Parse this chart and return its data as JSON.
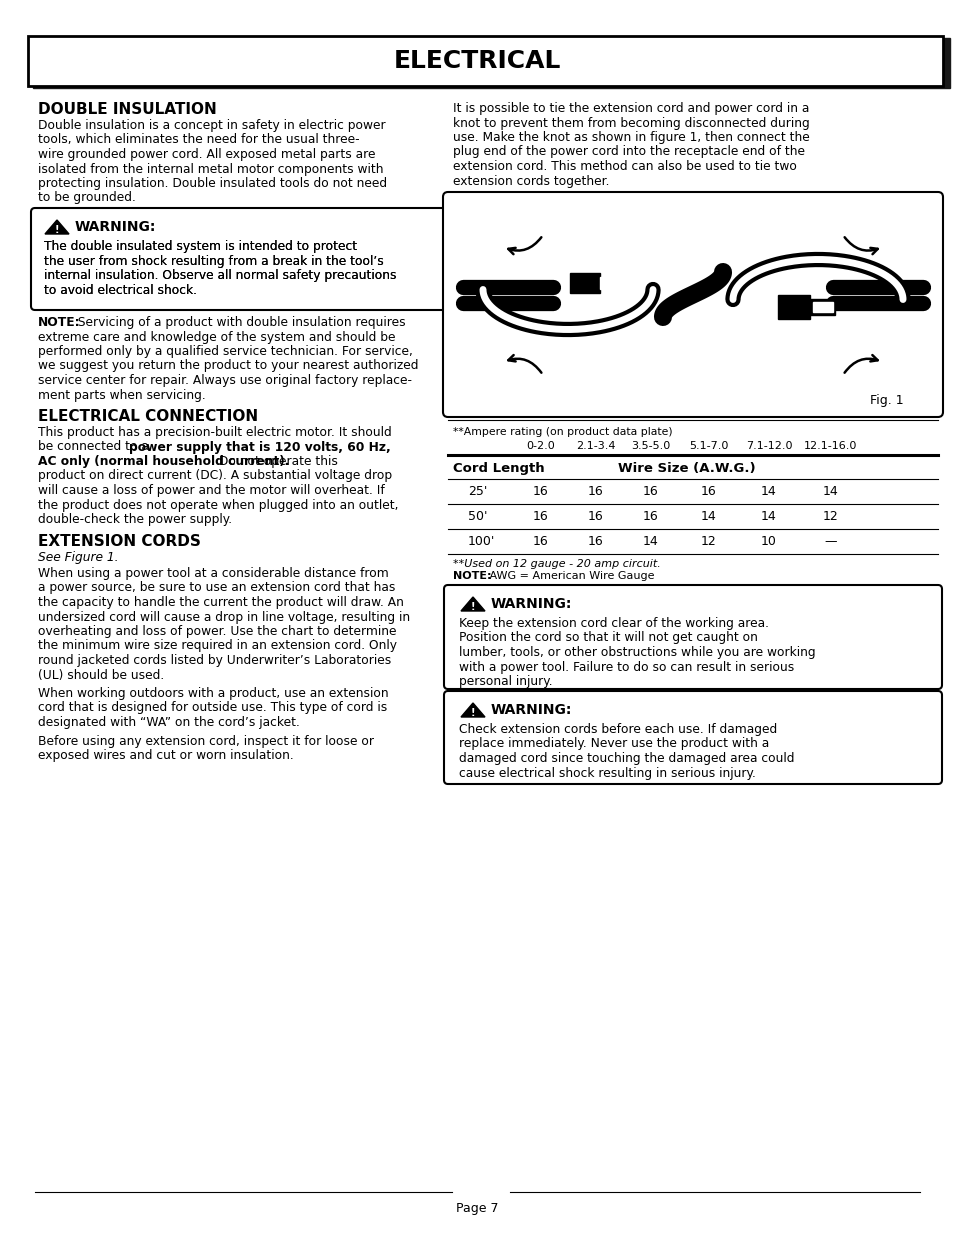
{
  "title": "ELECTRICAL",
  "bg_color": "#ffffff",
  "page_number": "Page 7",
  "double_insulation_heading": "DOUBLE INSULATION",
  "double_insulation_body": [
    "Double insulation is a concept in safety in electric power",
    "tools, which eliminates the need for the usual three-",
    "wire grounded power cord. All exposed metal parts are",
    "isolated from the internal metal motor components with",
    "protecting insulation. Double insulated tools do not need",
    "to be grounded."
  ],
  "warning1_body": [
    "The double insulated system is intended to protect",
    "the user from shock resulting from a break in the tool’s",
    "internal insulation. Observe all normal safety precautions",
    "to avoid electrical shock."
  ],
  "note1_lines": [
    [
      "bold",
      "NOTE:"
    ],
    [
      "normal",
      " Servicing of a product with double insulation requires"
    ],
    [
      "normal",
      "extreme care and knowledge of the system and should be"
    ],
    [
      "normal",
      "performed only by a qualified service technician. For service,"
    ],
    [
      "normal",
      "we suggest you return the product to your nearest authorized"
    ],
    [
      "normal",
      "service center for repair. Always use original factory replace-"
    ],
    [
      "normal",
      "ment parts when servicing."
    ]
  ],
  "elec_conn_heading": "ELECTRICAL CONNECTION",
  "elec_conn_lines": [
    [
      [
        "normal",
        "This product has a precision-built electric motor. It should"
      ]
    ],
    [
      [
        "normal",
        "be connected to a "
      ],
      [
        "bold",
        "power supply that is 120 volts, 60 Hz,"
      ]
    ],
    [
      [
        "bold",
        "AC only (normal household current)."
      ],
      [
        "normal",
        " Do not operate this"
      ]
    ],
    [
      [
        "normal",
        "product on direct current (DC). A substantial voltage drop"
      ]
    ],
    [
      [
        "normal",
        "will cause a loss of power and the motor will overheat. If"
      ]
    ],
    [
      [
        "normal",
        "the product does not operate when plugged into an outlet,"
      ]
    ],
    [
      [
        "normal",
        "double-check the power supply."
      ]
    ]
  ],
  "ext_cords_heading": "EXTENSION CORDS",
  "ext_cords_subhead": "See Figure 1.",
  "ext_cords_body1": [
    "When using a power tool at a considerable distance from",
    "a power source, be sure to use an extension cord that has",
    "the capacity to handle the current the product will draw. An",
    "undersized cord will cause a drop in line voltage, resulting in",
    "overheating and loss of power. Use the chart to determine",
    "the minimum wire size required in an extension cord. Only",
    "round jacketed cords listed by Underwriter’s Laboratories",
    "(UL) should be used."
  ],
  "ext_cords_body2": [
    "When working outdoors with a product, use an extension",
    "cord that is designed for outside use. This type of cord is",
    "designated with “WA” on the cord’s jacket."
  ],
  "ext_cords_body3": [
    "Before using any extension cord, inspect it for loose or",
    "exposed wires and cut or worn insulation."
  ],
  "right_col_body1": [
    "It is possible to tie the extension cord and power cord in a",
    "knot to prevent them from becoming disconnected during",
    "use. Make the knot as shown in figure 1, then connect the",
    "plug end of the power cord into the receptacle end of the",
    "extension cord. This method can also be used to tie two",
    "extension cords together."
  ],
  "table_footnote1": "**Ampere rating (on product data plate)",
  "table_ampere_headers": [
    "0-2.0",
    "2.1-3.4",
    "3.5-5.0",
    "5.1-7.0",
    "7.1-12.0",
    "12.1-16.0"
  ],
  "table_rows": [
    [
      "25'",
      "16",
      "16",
      "16",
      "16",
      "14",
      "14"
    ],
    [
      "50'",
      "16",
      "16",
      "16",
      "14",
      "14",
      "12"
    ],
    [
      "100'",
      "16",
      "16",
      "14",
      "12",
      "10",
      "—"
    ]
  ],
  "table_footnote2": "**Used on 12 gauge - 20 amp circuit.",
  "table_footnote3": "NOTE: AWG = American Wire Gauge",
  "warning2_body": [
    "Keep the extension cord clear of the working area.",
    "Position the cord so that it will not get caught on",
    "lumber, tools, or other obstructions while you are working",
    "with a power tool. Failure to do so can result in serious",
    "personal injury."
  ],
  "warning3_body": [
    "Check extension cords before each use. If damaged",
    "replace immediately. Never use the product with a",
    "damaged cord since touching the damaged area could",
    "cause electrical shock resulting in serious injury."
  ]
}
